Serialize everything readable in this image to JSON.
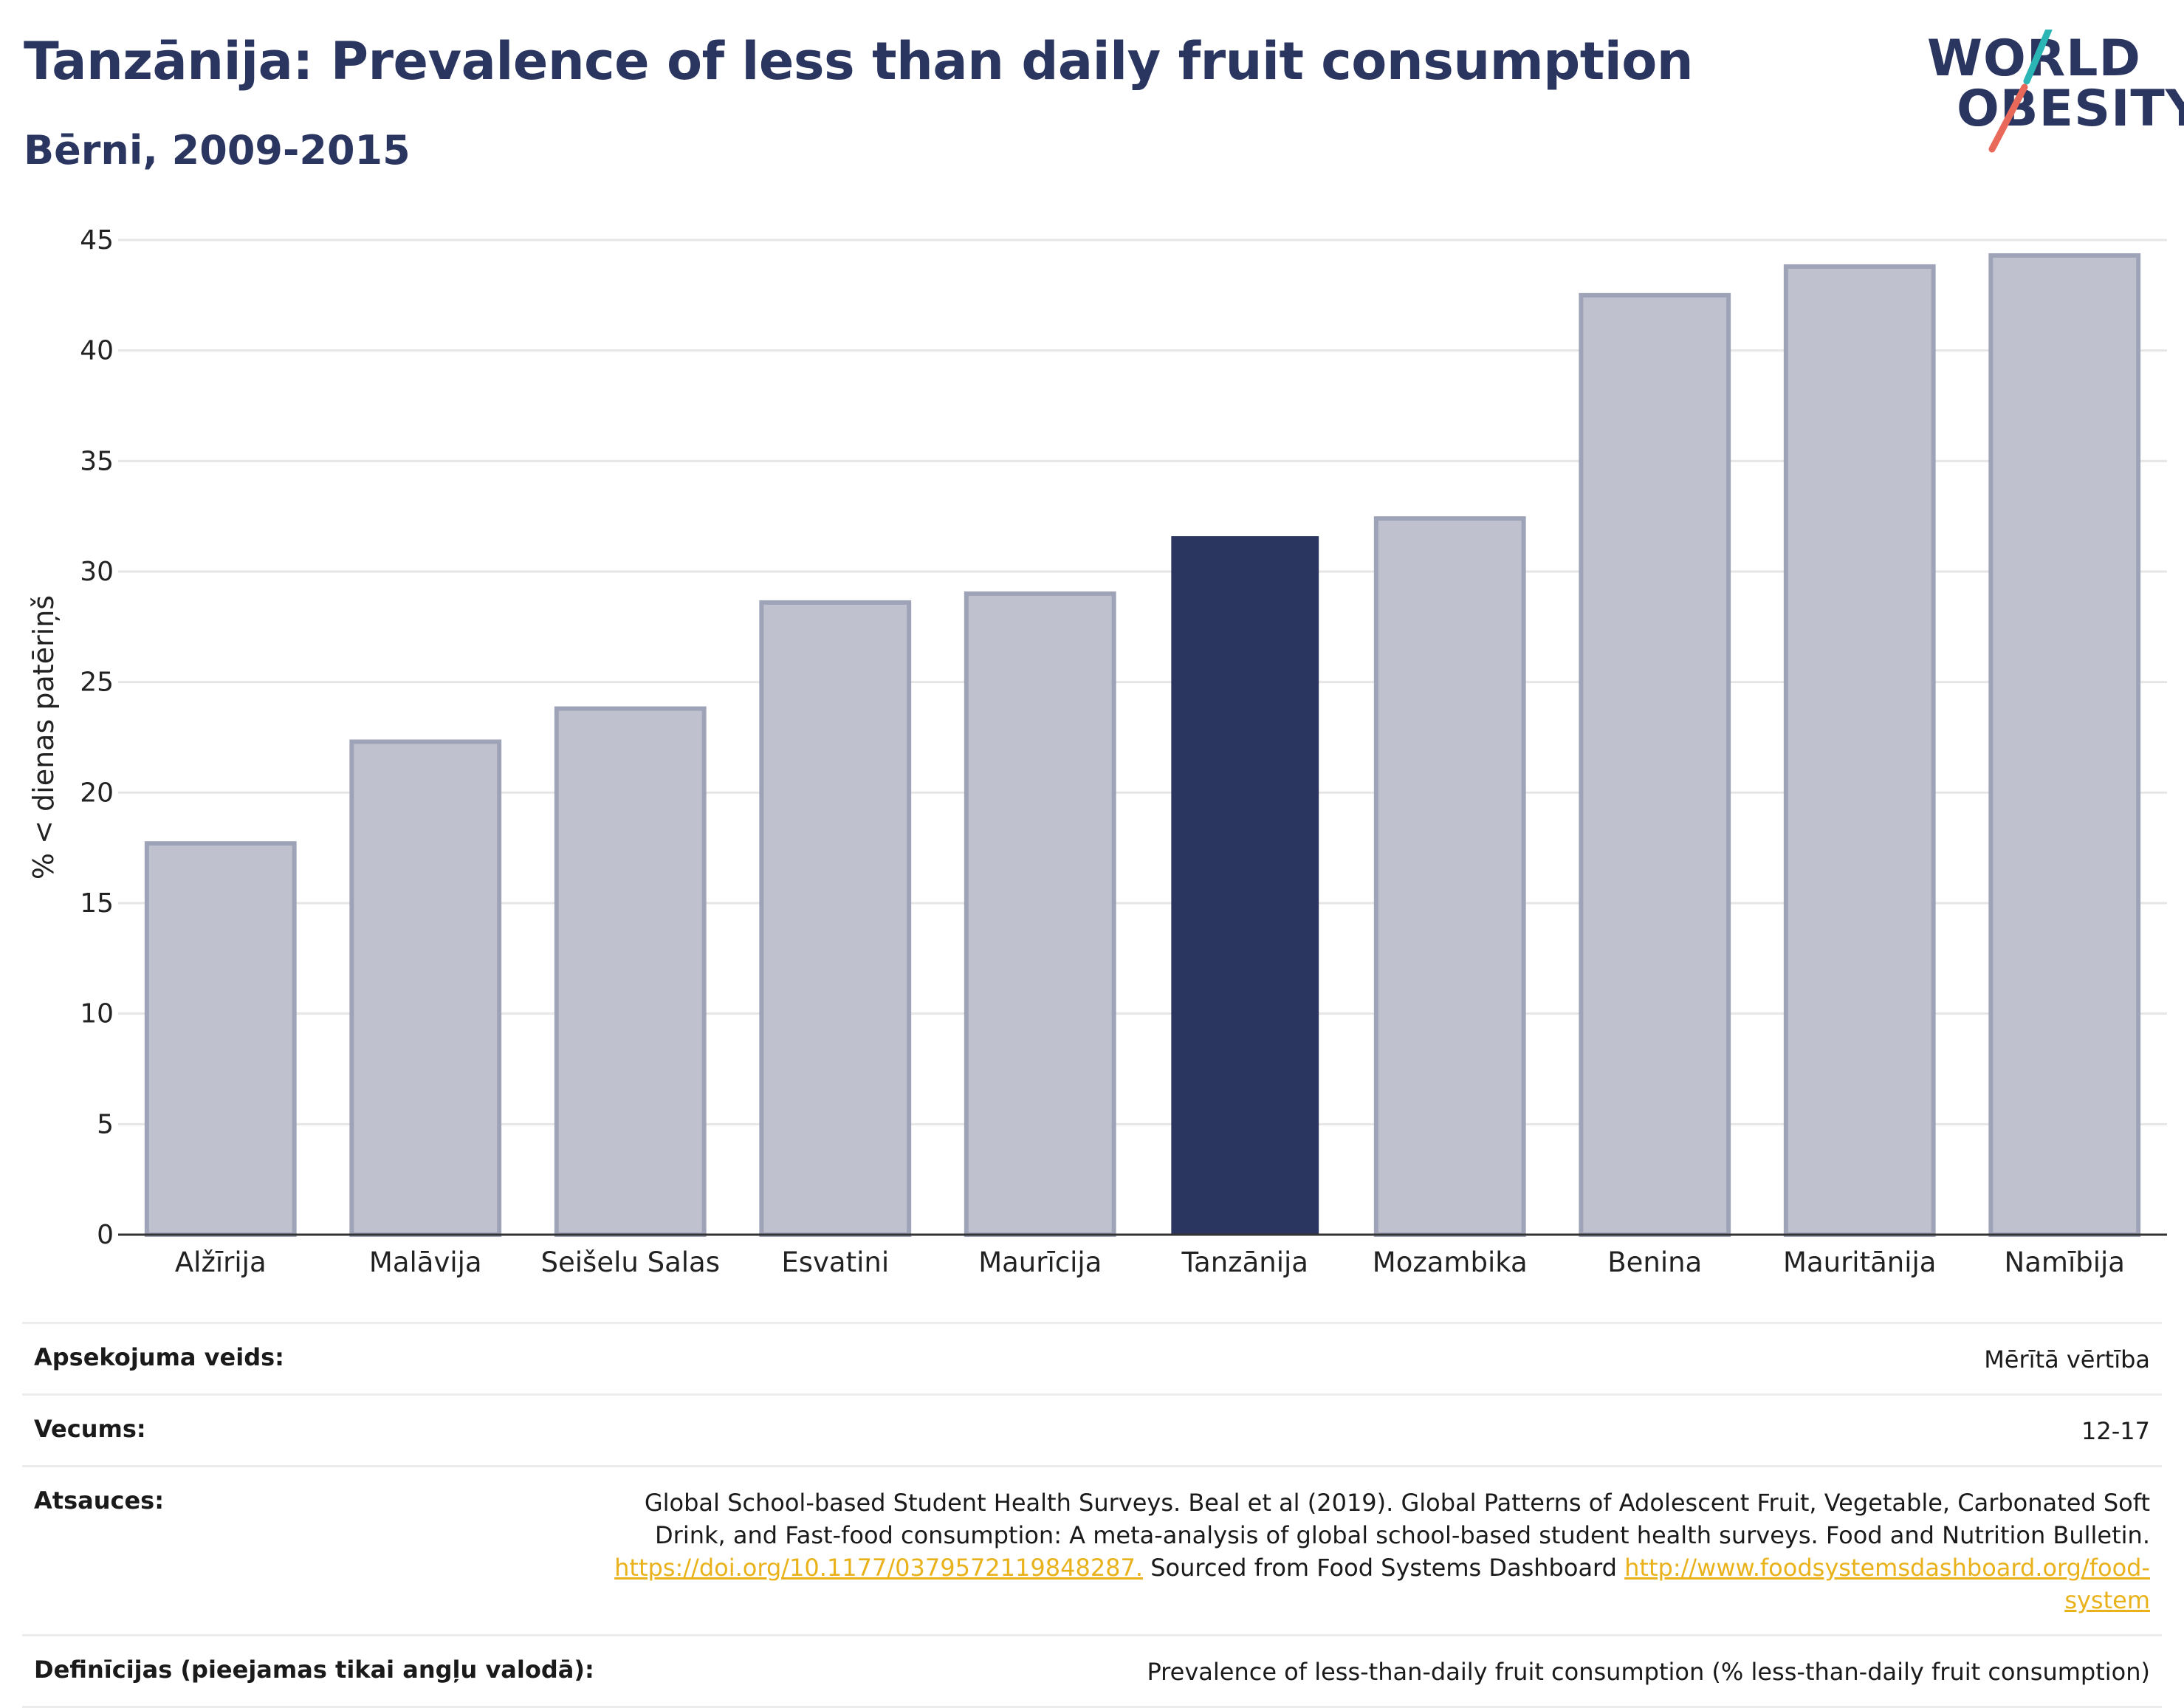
{
  "header": {
    "title": "Tanzānija: Prevalence of less than daily fruit consumption",
    "subtitle": "Bērni, 2009-2015"
  },
  "logo": {
    "line1": "WORLD",
    "line2": "OBESITY",
    "colors": {
      "text": "#2a3560",
      "teal": "#2bb5b5",
      "coral": "#e8685a"
    }
  },
  "chart_data": {
    "type": "bar",
    "ylabel": "% < dienas patēriņš",
    "xlabel": "",
    "ylim": [
      0,
      45
    ],
    "yticks": [
      0,
      5,
      10,
      15,
      20,
      25,
      30,
      35,
      40,
      45
    ],
    "grid": true,
    "categories": [
      "Alžīrija",
      "Malāvija",
      "Seišelu Salas",
      "Esvatini",
      "Maurīcija",
      "Tanzānija",
      "Mozambika",
      "Benina",
      "Mauritānija",
      "Namībija"
    ],
    "values": [
      17.7,
      22.3,
      23.8,
      28.6,
      29.0,
      31.6,
      32.4,
      42.5,
      43.8,
      44.3
    ],
    "highlight": "Tanzānija",
    "colors": {
      "bar": "#bfc2ce",
      "bar_border": "#9ea3b8",
      "highlight": "#2a3560",
      "grid": "#e6e6e6",
      "axis": "#333333"
    }
  },
  "meta": {
    "survey_type_label": "Apsekojuma veids:",
    "survey_type_value": "Mērītā vērtība",
    "age_label": "Vecums:",
    "age_value": "12-17",
    "references_label": "Atsauces:",
    "references_text_1": "Global School-based Student Health Surveys. Beal et al (2019). Global Patterns of Adolescent Fruit, Vegetable, Carbonated Soft Drink, and Fast-food consumption: A meta-analysis of global school-based student health surveys. Food and Nutrition Bulletin.",
    "references_link_1": "https://doi.org/10.1177/0379572119848287.",
    "references_text_2": "Sourced from Food Systems Dashboard",
    "references_link_2": "http://www.foodsystemsdashboard.org/food-system",
    "definitions_label": "Definīcijas (pieejamas tikai angļu valodā):",
    "definitions_value": "Prevalence of less-than-daily fruit consumption (% less-than-daily fruit consumption)"
  }
}
